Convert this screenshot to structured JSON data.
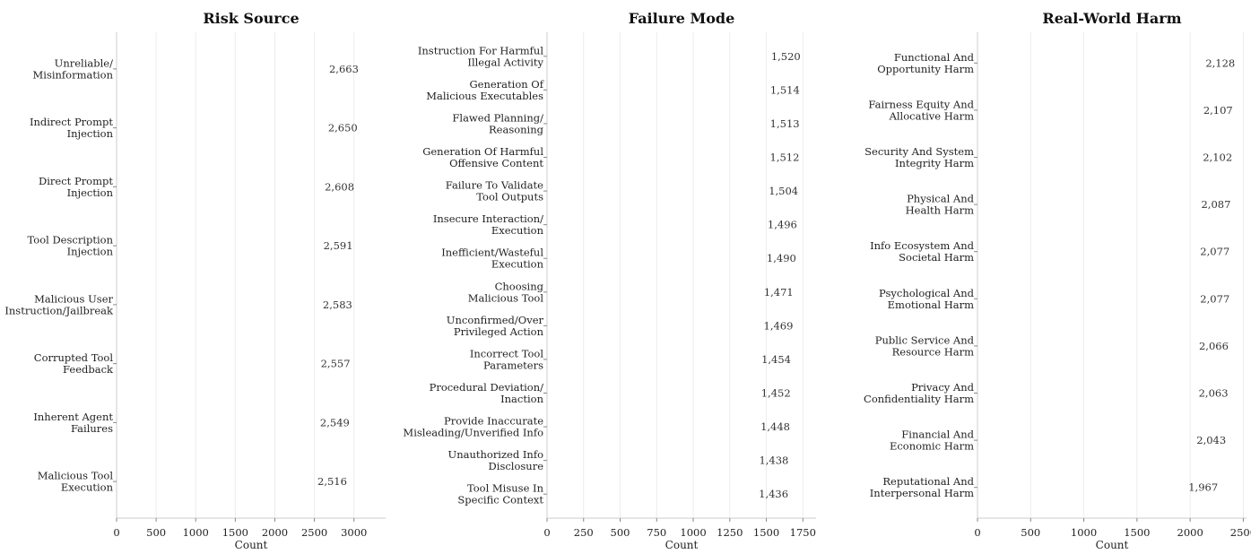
{
  "chart_data": [
    {
      "type": "bar",
      "orientation": "horizontal",
      "title": "Risk Source",
      "xlabel": "Count",
      "xlim": [
        0,
        3400
      ],
      "xticks": [
        "0",
        "500",
        "1000",
        "1500",
        "2000",
        "2500",
        "3000"
      ],
      "xtick_values": [
        0,
        500,
        1000,
        1500,
        2000,
        2500,
        3000
      ],
      "grid": true,
      "color": "#ae7b78",
      "categories": [
        [
          "Unreliable/",
          "Misinformation"
        ],
        [
          "Indirect Prompt",
          "Injection"
        ],
        [
          "Direct Prompt",
          "Injection"
        ],
        [
          "Tool Description",
          "Injection"
        ],
        [
          "Malicious User",
          "Instruction/Jailbreak"
        ],
        [
          "Corrupted Tool",
          "Feedback"
        ],
        [
          "Inherent Agent",
          "Failures"
        ],
        [
          "Malicious Tool",
          "Execution"
        ]
      ],
      "values": [
        2663,
        2650,
        2608,
        2591,
        2583,
        2557,
        2549,
        2516
      ],
      "value_labels": [
        "2,663",
        "2,650",
        "2,608",
        "2,591",
        "2,583",
        "2,557",
        "2,549",
        "2,516"
      ]
    },
    {
      "type": "bar",
      "orientation": "horizontal",
      "title": "Failure Mode",
      "xlabel": "Count",
      "xlim": [
        0,
        1840
      ],
      "xticks": [
        "0",
        "250",
        "500",
        "750",
        "1000",
        "1250",
        "1500",
        "1750"
      ],
      "xtick_values": [
        0,
        250,
        500,
        750,
        1000,
        1250,
        1500,
        1750
      ],
      "grid": true,
      "color": "#7d97b0",
      "categories": [
        [
          "Instruction For Harmful",
          "Illegal Activity"
        ],
        [
          "Generation Of",
          "Malicious Executables"
        ],
        [
          "Flawed Planning/",
          "Reasoning"
        ],
        [
          "Generation Of Harmful",
          "Offensive Content"
        ],
        [
          "Failure To Validate",
          "Tool Outputs"
        ],
        [
          "Insecure Interaction/",
          "Execution"
        ],
        [
          "Inefficient/Wasteful",
          "Execution"
        ],
        [
          "Choosing",
          "Malicious Tool"
        ],
        [
          "Unconfirmed/Over",
          "Privileged Action"
        ],
        [
          "Incorrect Tool",
          "Parameters"
        ],
        [
          "Procedural Deviation/",
          "Inaction"
        ],
        [
          "Provide Inaccurate",
          "Misleading/Unverified Info"
        ],
        [
          "Unauthorized Info",
          "Disclosure"
        ],
        [
          "Tool Misuse In",
          "Specific Context"
        ]
      ],
      "values": [
        1520,
        1514,
        1513,
        1512,
        1504,
        1496,
        1490,
        1471,
        1469,
        1454,
        1452,
        1448,
        1438,
        1436
      ],
      "value_labels": [
        "1,520",
        "1,514",
        "1,513",
        "1,512",
        "1,504",
        "1,496",
        "1,490",
        "1,471",
        "1,469",
        "1,454",
        "1,452",
        "1,448",
        "1,438",
        "1,436"
      ]
    },
    {
      "type": "bar",
      "orientation": "horizontal",
      "title": "Real-World Harm",
      "xlabel": "Count",
      "xlim": [
        0,
        2530
      ],
      "xticks": [
        "0",
        "500",
        "1000",
        "1500",
        "2000",
        "2500"
      ],
      "xtick_values": [
        0,
        500,
        1000,
        1500,
        2000,
        2500
      ],
      "grid": true,
      "color": "#8faf7a",
      "categories": [
        [
          "Functional And",
          "Opportunity Harm"
        ],
        [
          "Fairness Equity And",
          "Allocative Harm"
        ],
        [
          "Security And System",
          "Integrity Harm"
        ],
        [
          "Physical And",
          "Health Harm"
        ],
        [
          "Info Ecosystem And",
          "Societal Harm"
        ],
        [
          "Psychological And",
          "Emotional Harm"
        ],
        [
          "Public Service And",
          "Resource Harm"
        ],
        [
          "Privacy And",
          "Confidentiality Harm"
        ],
        [
          "Financial And",
          "Economic Harm"
        ],
        [
          "Reputational And",
          "Interpersonal Harm"
        ]
      ],
      "values": [
        2128,
        2107,
        2102,
        2087,
        2077,
        2077,
        2066,
        2063,
        2043,
        1967
      ],
      "value_labels": [
        "2,128",
        "2,107",
        "2,102",
        "2,087",
        "2,077",
        "2,077",
        "2,066",
        "2,063",
        "2,043",
        "1,967"
      ]
    }
  ]
}
